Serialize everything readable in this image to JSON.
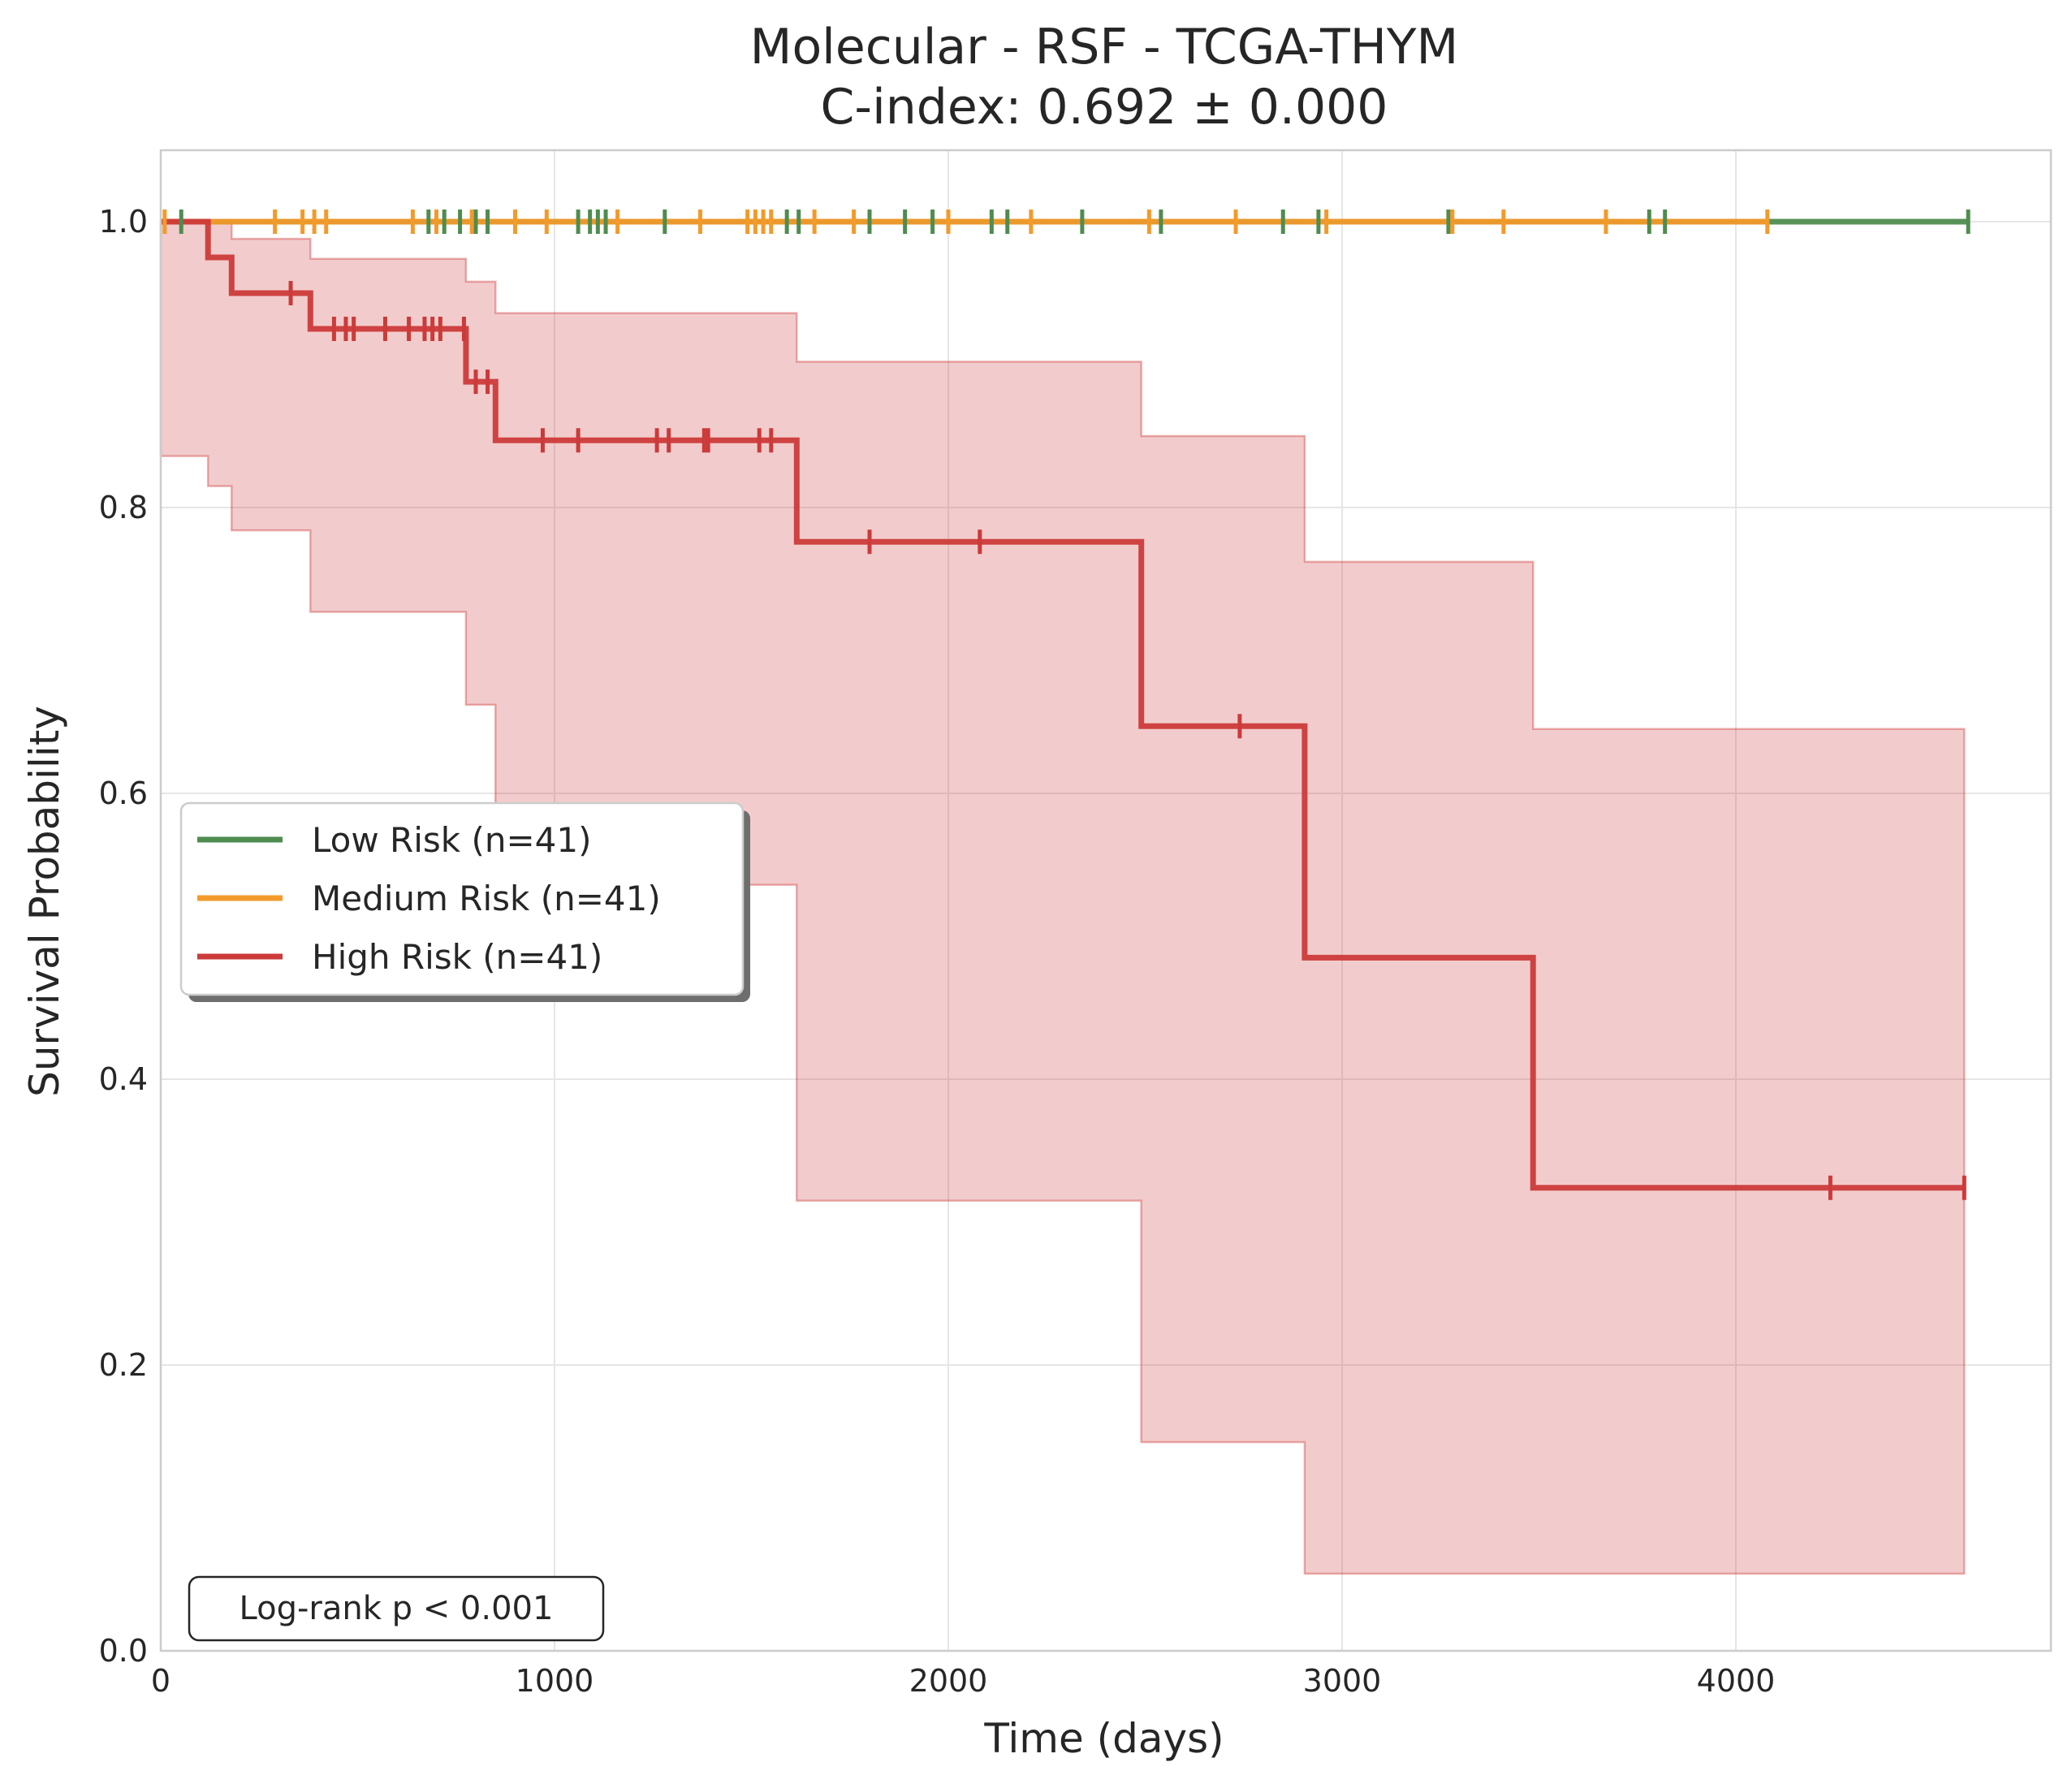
{
  "chart_data": {
    "type": "line",
    "title": "Molecular - RSF - TCGA-THYM",
    "subtitle": "C-index: 0.692 ± 0.000",
    "xlabel": "Time (days)",
    "ylabel": "Survival Probability",
    "xlim": [
      0,
      4800
    ],
    "ylim": [
      0,
      1.05
    ],
    "xticks": [
      0,
      1000,
      2000,
      3000,
      4000
    ],
    "xtick_labels": [
      "0",
      "1000",
      "2000",
      "3000",
      "4000"
    ],
    "yticks": [
      0.0,
      0.2,
      0.4,
      0.6,
      0.8,
      1.0
    ],
    "ytick_labels": [
      "0.0",
      "0.2",
      "0.4",
      "0.6",
      "0.8",
      "1.0"
    ],
    "grid": true,
    "legend_position": "center-left",
    "annotation": "Log-rank p < 0.001",
    "series": [
      {
        "name": "Low Risk (n=41)",
        "color": "#4f8c4f",
        "steps": [
          [
            0,
            1.0
          ],
          [
            4590,
            1.0
          ]
        ],
        "censors": [
          52,
          680,
          720,
          760,
          800,
          830,
          1060,
          1090,
          1110,
          1130,
          1280,
          1590,
          1620,
          1800,
          1890,
          1960,
          2110,
          2150,
          2340,
          2540,
          2850,
          2940,
          3270,
          3780,
          3820,
          4590
        ]
      },
      {
        "name": "Medium Risk (n=41)",
        "color": "#f39a2b",
        "steps": [
          [
            0,
            1.0
          ],
          [
            4080,
            1.0
          ]
        ],
        "censors": [
          10,
          290,
          360,
          390,
          420,
          640,
          700,
          790,
          900,
          980,
          1160,
          1370,
          1490,
          1510,
          1530,
          1550,
          1660,
          1760,
          2000,
          2210,
          2510,
          2730,
          2960,
          3280,
          3410,
          3670,
          4080
        ]
      },
      {
        "name": "High Risk (n=41)",
        "color": "#cc3a3a",
        "steps": [
          [
            0,
            1.0
          ],
          [
            120,
            0.975
          ],
          [
            180,
            0.95
          ],
          [
            380,
            0.925
          ],
          [
            775,
            0.888
          ],
          [
            850,
            0.847
          ],
          [
            1615,
            0.776
          ],
          [
            2490,
            0.647
          ],
          [
            2905,
            0.485
          ],
          [
            3485,
            0.324
          ],
          [
            4580,
            0.324
          ]
        ],
        "ci_low": [
          [
            0,
            1.0
          ],
          [
            120,
            0.836
          ],
          [
            180,
            0.815
          ],
          [
            380,
            0.784
          ],
          [
            775,
            0.727
          ],
          [
            850,
            0.662
          ],
          [
            1615,
            0.536
          ],
          [
            2490,
            0.315
          ],
          [
            2905,
            0.146
          ],
          [
            3485,
            0.054
          ],
          [
            4580,
            0.054
          ]
        ],
        "ci_high": [
          [
            0,
            1.0
          ],
          [
            120,
            1.0
          ],
          [
            180,
            0.988
          ],
          [
            380,
            0.974
          ],
          [
            775,
            0.958
          ],
          [
            850,
            0.936
          ],
          [
            1615,
            0.902
          ],
          [
            2490,
            0.85
          ],
          [
            2905,
            0.762
          ],
          [
            3485,
            0.645
          ],
          [
            4580,
            0.645
          ]
        ],
        "censors": [
          330,
          440,
          470,
          490,
          570,
          630,
          670,
          690,
          710,
          770,
          800,
          830,
          970,
          1060,
          1260,
          1290,
          1380,
          1390,
          1520,
          1550,
          1800,
          2080,
          2740,
          4240,
          4580
        ]
      }
    ]
  }
}
